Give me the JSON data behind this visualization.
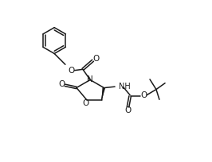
{
  "bg_color": "#ffffff",
  "line_color": "#1a1a1a",
  "line_width": 1.1,
  "text_color": "#1a1a1a",
  "font_size": 7.0,
  "fig_width": 2.66,
  "fig_height": 2.04,
  "dpi": 100,
  "xlim": [
    0,
    10
  ],
  "ylim": [
    0,
    7.65
  ]
}
